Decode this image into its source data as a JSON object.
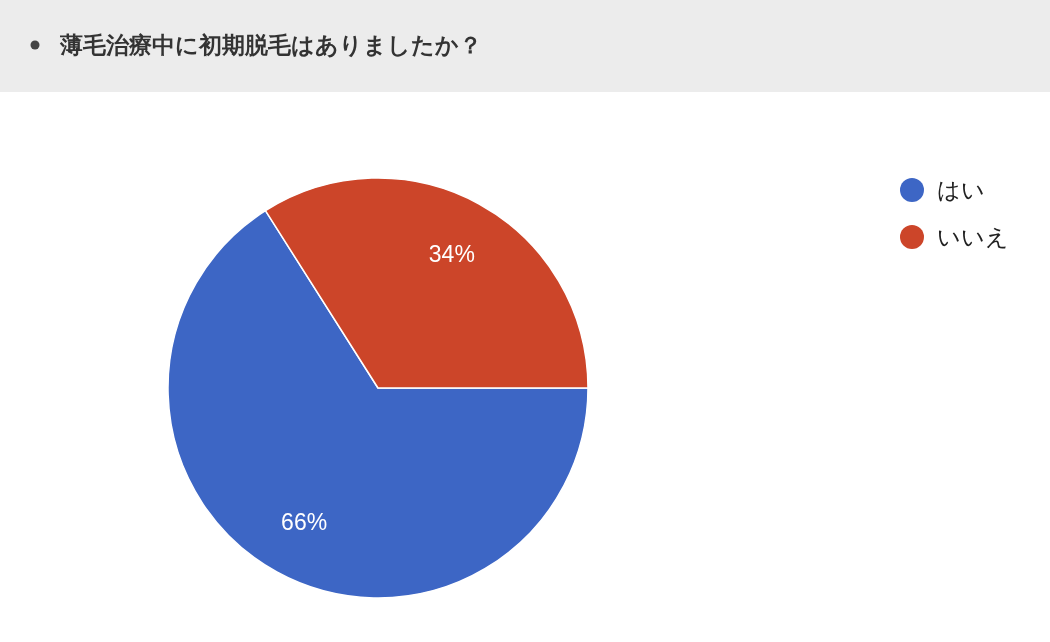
{
  "chart_data": {
    "type": "pie",
    "title": "薄毛治療中に初期脱毛はありましたか？",
    "categories": [
      "はい",
      "いいえ"
    ],
    "values": [
      66,
      34
    ],
    "colors": [
      "#3d66c5",
      "#cc4529"
    ],
    "value_labels": [
      "66%",
      "34%"
    ],
    "legend": "top right"
  }
}
